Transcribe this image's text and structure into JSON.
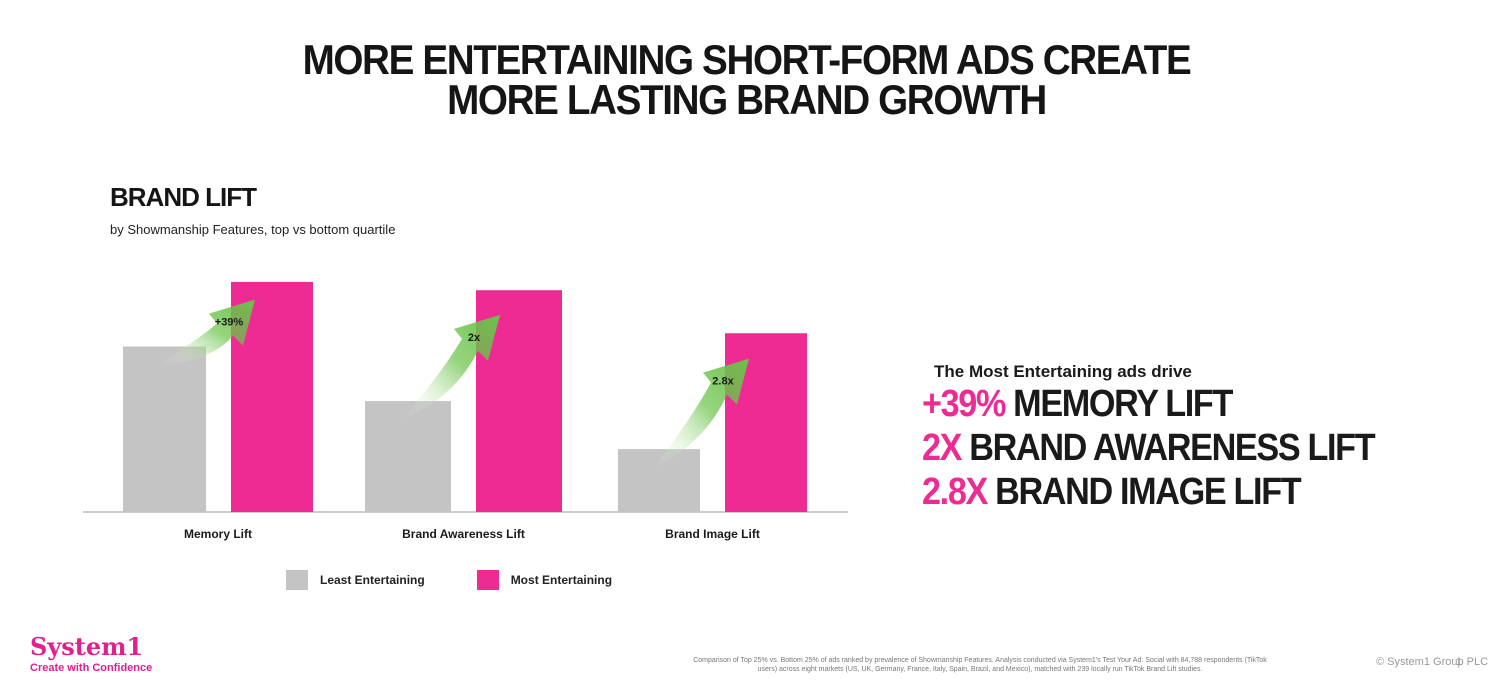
{
  "slide": {
    "title_line1": "MORE ENTERTAINING SHORT-FORM ADS CREATE",
    "title_line2": "MORE LASTING BRAND GROWTH"
  },
  "chart_data": {
    "type": "bar",
    "title": "BRAND LIFT",
    "subtitle": "by Showmanship Features, top vs bottom quartile",
    "categories": [
      "Memory Lift",
      "Brand Awareness Lift",
      "Brand Image Lift"
    ],
    "series": [
      {
        "name": "Least Entertaining",
        "color": "#C4C4C4",
        "values": [
          100,
          67,
          38
        ]
      },
      {
        "name": "Most Entertaining",
        "color": "#EE2A93",
        "values": [
          139,
          134,
          108
        ]
      }
    ],
    "ylim": [
      0,
      145
    ],
    "grid": false,
    "legend_position": "bottom-center",
    "annotations": [
      "+39%",
      "2x",
      "2.8x"
    ],
    "annotation_color": "#6BC34A"
  },
  "callout": {
    "intro": "The Most Entertaining ads drive",
    "lines": [
      {
        "highlight": "+39%",
        "text": " MEMORY LIFT"
      },
      {
        "highlight": "2X",
        "text": " BRAND AWARENESS LIFT"
      },
      {
        "highlight": "2.8X",
        "text": " BRAND IMAGE LIFT"
      }
    ]
  },
  "footer": {
    "logo_name": "System1",
    "logo_tagline": "Create with Confidence",
    "footnote_line1": "Comparison of Top 25% vs. Bottom 25% of ads ranked by prevalence of Showmanship Features. Analysis conducted via System1's Test Your Ad: Social with 84,788 respondents (TikTok",
    "footnote_line2": "users) across eight markets (US, UK, Germany, France, Italy, Spain, Brazil, and Mexico), matched with 239 locally run TikTok Brand Lift studies.",
    "copyright": "© System1 Group PLC",
    "page_number": "1"
  },
  "colors": {
    "accent": "#EE2A93",
    "brand": "#E11F8F"
  }
}
